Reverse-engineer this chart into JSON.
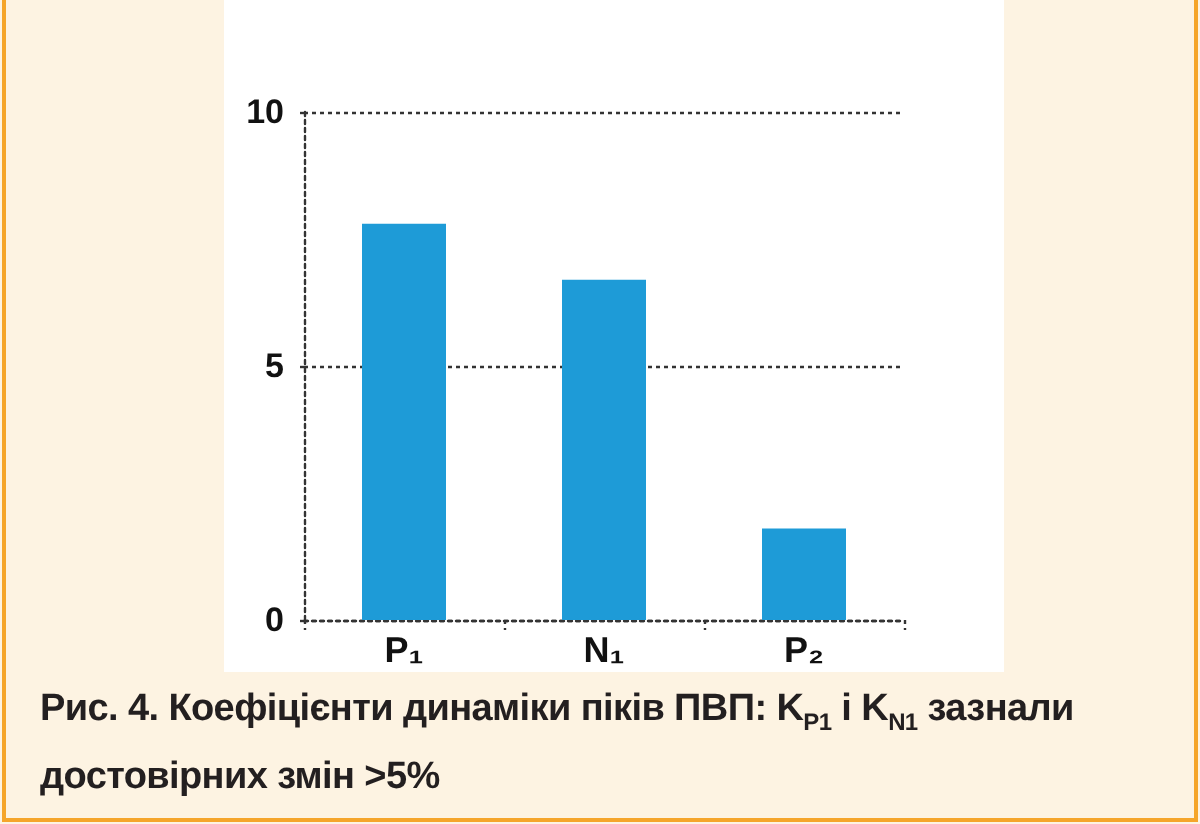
{
  "chart_data": {
    "type": "bar",
    "title": "Рис. 4. Коефіцієнти динаміки піків ПВП: K$_{P1}$ і K$_{N1}$ зазнали достовірних змін >5%",
    "categories": [
      "P₁",
      "N₁",
      "P₂"
    ],
    "values": [
      7.8,
      6.7,
      1.8
    ],
    "color": "#1e9bd7",
    "ylim": [
      0,
      10
    ],
    "yticks": [
      0,
      5,
      10
    ],
    "grid": "y"
  }
}
